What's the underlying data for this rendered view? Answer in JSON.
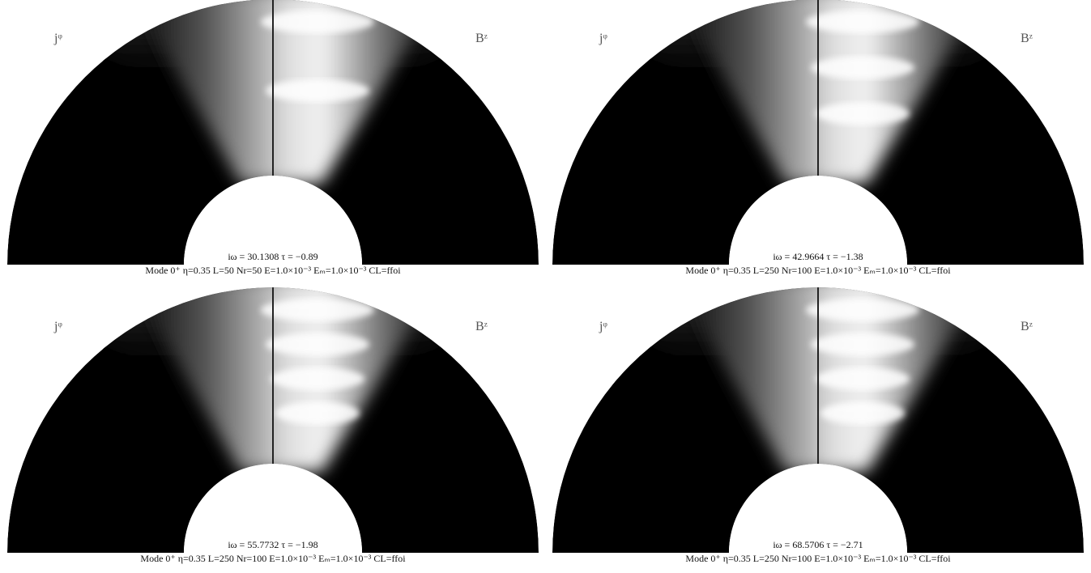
{
  "panels": [
    {
      "left_label": "jᵠ",
      "right_label": "Bᶻ",
      "eigen": "iω = 30.1308  τ = −0.89",
      "caption": "Mode 0⁺  η=0.35  L=50  Nr=50  E=1.0×10⁻³  Eₘ=1.0×10⁻³  CL=ffoi"
    },
    {
      "left_label": "jᵠ",
      "right_label": "Bᶻ",
      "eigen": "iω = 42.9664  τ = −1.38",
      "caption": "Mode 0⁺  η=0.35  L=250  Nr=100  E=1.0×10⁻³  Eₘ=1.0×10⁻³  CL=ffoi"
    },
    {
      "left_label": "jᵠ",
      "right_label": "Bᶻ",
      "eigen": "iω = 55.7732  τ = −1.98",
      "caption": "Mode 0⁺  η=0.35  L=250  Nr=100  E=1.0×10⁻³  Eₘ=1.0×10⁻³  CL=ffoi"
    },
    {
      "left_label": "jᵠ",
      "right_label": "Bᶻ",
      "eigen": "iω = 68.5706  τ = −2.71",
      "caption": "Mode 0⁺  η=0.35  L=250  Nr=100  E=1.0×10⁻³  Eₘ=1.0×10⁻³  CL=ffoi"
    }
  ]
}
